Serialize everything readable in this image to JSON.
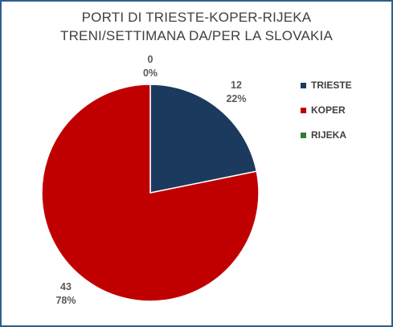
{
  "chart_data": {
    "type": "pie",
    "title": "PORTI DI TRIESTE-KOPER-RIJEKA",
    "subtitle": "TRENI/SETTIMANA DA/PER LA SLOVAKIA",
    "categories": [
      "TRIESTE",
      "KOPER",
      "RIJEKA"
    ],
    "values": [
      12,
      43,
      0
    ],
    "percent_labels": [
      "22%",
      "78%",
      "0%"
    ],
    "colors": [
      "#1b3a5e",
      "#c00000",
      "#2e7d32"
    ],
    "legend_position": "right"
  }
}
